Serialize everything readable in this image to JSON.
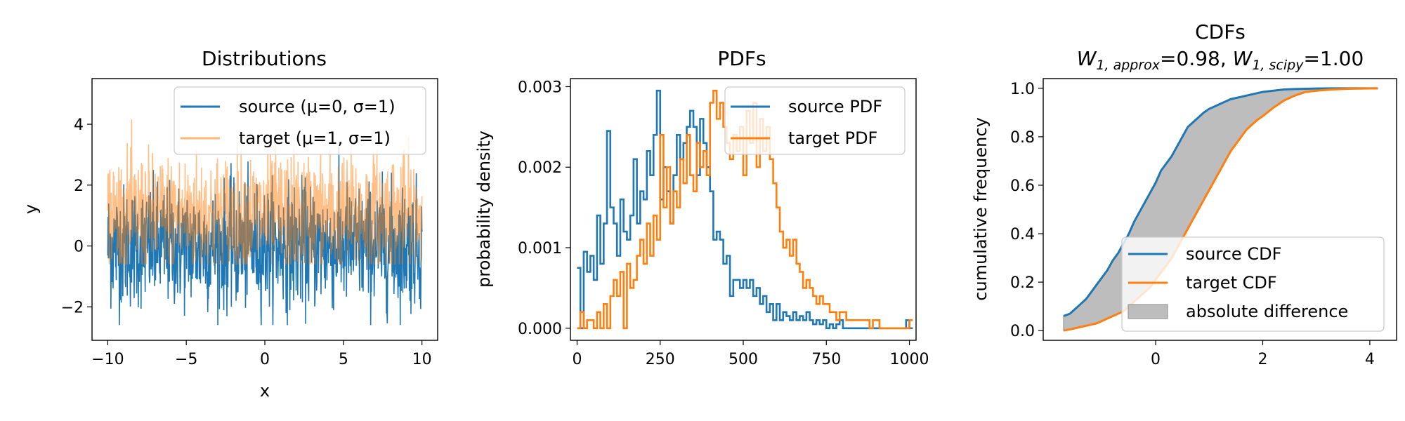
{
  "chart_data": [
    {
      "type": "line",
      "title": "Distributions",
      "xlabel": "x",
      "ylabel": "y",
      "xlim": [
        -11,
        11
      ],
      "ylim": [
        -3.1,
        5.5
      ],
      "xticks": [
        -10,
        -5,
        0,
        5,
        10
      ],
      "xtick_labels": [
        "−10",
        "−5",
        "0",
        "5",
        "10"
      ],
      "yticks": [
        -2,
        0,
        2,
        4
      ],
      "ytick_labels": [
        "−2",
        "0",
        "2",
        "4"
      ],
      "legend_position": "top-right",
      "grid": false,
      "series": [
        {
          "name": "source (μ=0, σ=1)",
          "color": "#1f77b4",
          "mean": 0,
          "std": 1,
          "n_points": 1000,
          "x_range": [
            -10,
            10
          ],
          "y_min": -2.6,
          "y_max": 4.2
        },
        {
          "name": "target (μ=1, σ=1)",
          "color": "#ff7f0e",
          "opacity": 0.5,
          "mean": 1,
          "std": 1,
          "n_points": 1000,
          "x_range": [
            -10,
            10
          ],
          "y_min": -0.6,
          "y_max": 5.1
        }
      ]
    },
    {
      "type": "line",
      "title": "PDFs",
      "xlabel": "",
      "ylabel": "probability density",
      "xlim": [
        -20,
        1020
      ],
      "ylim": [
        -0.00015,
        0.0031
      ],
      "xticks": [
        0,
        250,
        500,
        750,
        1000
      ],
      "xtick_labels": [
        "0",
        "250",
        "500",
        "750",
        "1000"
      ],
      "yticks": [
        0,
        0.001,
        0.002,
        0.003
      ],
      "ytick_labels": [
        "0.000",
        "0.001",
        "0.002",
        "0.003"
      ],
      "legend_position": "top-right",
      "grid": false,
      "series": [
        {
          "name": "source PDF",
          "color": "#1f77b4",
          "x": [
            0,
            10,
            20,
            30,
            40,
            50,
            60,
            70,
            80,
            90,
            100,
            110,
            120,
            130,
            140,
            150,
            160,
            170,
            180,
            190,
            200,
            210,
            220,
            230,
            240,
            250,
            260,
            270,
            280,
            290,
            300,
            310,
            320,
            330,
            340,
            350,
            360,
            370,
            380,
            390,
            400,
            410,
            420,
            430,
            440,
            450,
            460,
            470,
            480,
            490,
            500,
            510,
            520,
            530,
            540,
            550,
            560,
            570,
            580,
            590,
            600,
            610,
            620,
            630,
            640,
            650,
            660,
            670,
            680,
            690,
            700,
            710,
            720,
            730,
            740,
            750,
            760,
            770,
            780,
            790,
            800,
            810,
            820,
            830,
            840,
            850,
            860,
            870,
            880,
            890,
            900,
            910,
            920,
            930,
            940,
            950,
            960,
            970,
            980,
            990,
            1000
          ],
          "y": [
            0.00075,
            0.0,
            0.00095,
            0.0007,
            0.0009,
            0.0006,
            0.0014,
            0.0008,
            0.0013,
            0.00245,
            0.0015,
            0.0013,
            0.0009,
            0.0016,
            0.0012,
            0.0011,
            0.0014,
            0.0021,
            0.0013,
            0.0017,
            0.0016,
            0.0022,
            0.0019,
            0.0024,
            0.00295,
            0.0016,
            0.002,
            0.0017,
            0.0013,
            0.0019,
            0.0024,
            0.0021,
            0.0023,
            0.0025,
            0.0027,
            0.0025,
            0.0019,
            0.0026,
            0.0023,
            0.002,
            0.0017,
            0.0011,
            0.0012,
            0.0011,
            0.0008,
            0.0009,
            0.0004,
            0.0006,
            0.0006,
            0.0005,
            0.0006,
            0.0005,
            0.0006,
            0.0004,
            0.0005,
            0.0003,
            0.0004,
            0.0002,
            0.0003,
            0.0001,
            0.0003,
            0.0001,
            0.0002,
            0.00015,
            0.0001,
            0.0002,
            0.0001,
            0.00015,
            0.0001,
            0.0002,
            0.0001,
            5e-05,
            0.0001,
            5e-05,
            0.0001,
            0.0,
            5e-05,
            0.0,
            5e-05,
            0.0001,
            0.0,
            0.0,
            0.0,
            0.0,
            0.0,
            0.0,
            0.0,
            0.0,
            0.0,
            0.0,
            0.0,
            0.0,
            0.0,
            0.0,
            0.0,
            0.0,
            0.0,
            0.0,
            0.0,
            0.0001,
            0.0
          ]
        },
        {
          "name": "target PDF",
          "color": "#ff7f0e",
          "x": [
            0,
            10,
            20,
            30,
            40,
            50,
            60,
            70,
            80,
            90,
            100,
            110,
            120,
            130,
            140,
            150,
            160,
            170,
            180,
            190,
            200,
            210,
            220,
            230,
            240,
            250,
            260,
            270,
            280,
            290,
            300,
            310,
            320,
            330,
            340,
            350,
            360,
            370,
            380,
            390,
            400,
            410,
            420,
            430,
            440,
            450,
            460,
            470,
            480,
            490,
            500,
            510,
            520,
            530,
            540,
            550,
            560,
            570,
            580,
            590,
            600,
            610,
            620,
            630,
            640,
            650,
            660,
            670,
            680,
            690,
            700,
            710,
            720,
            730,
            740,
            750,
            760,
            770,
            780,
            790,
            800,
            810,
            820,
            830,
            840,
            850,
            860,
            870,
            880,
            890,
            900,
            910,
            920,
            930,
            940,
            950,
            960,
            970,
            980,
            990,
            1000
          ],
          "y": [
            0.0,
            0.0002,
            0.0,
            0.0001,
            0.0001,
            0.0,
            0.0002,
            0.0,
            0.0003,
            0.0,
            0.0004,
            0.0006,
            0.0004,
            0.0007,
            0.0,
            0.0008,
            0.0005,
            0.0006,
            0.0009,
            0.0011,
            0.0008,
            0.0013,
            0.0009,
            0.0014,
            0.0011,
            0.0024,
            0.0015,
            0.002,
            0.0013,
            0.0017,
            0.0015,
            0.0021,
            0.0018,
            0.0024,
            0.0019,
            0.0017,
            0.0023,
            0.002,
            0.0022,
            0.0019,
            0.0028,
            0.00295,
            0.0026,
            0.0028,
            0.0025,
            0.0023,
            0.0021,
            0.0024,
            0.0022,
            0.0025,
            0.0019,
            0.0027,
            0.0023,
            0.0028,
            0.002,
            0.0026,
            0.0022,
            0.0025,
            0.0021,
            0.0018,
            0.0015,
            0.0012,
            0.001,
            0.0011,
            0.0009,
            0.0011,
            0.0008,
            0.0007,
            0.0005,
            0.0006,
            0.0005,
            0.0004,
            0.0003,
            0.0004,
            0.0003,
            0.0003,
            0.0002,
            0.0002,
            0.0001,
            0.0002,
            0.0002,
            0.0001,
            0.0001,
            0.0001,
            0.0001,
            0.0001,
            0.0001,
            0.0001,
            0.0,
            0.0001,
            0.0001,
            0.0,
            0.0,
            0.0,
            0.0,
            0.0,
            0.0,
            0.0,
            0.0,
            0.0,
            0.0001
          ]
        }
      ]
    },
    {
      "type": "line",
      "title": "CDFs",
      "title_line2_parts": [
        "W",
        "1, approx",
        "=0.98, ",
        "W",
        "1, scipy",
        "=1.00"
      ],
      "xlabel": "",
      "ylabel": "cumulative frequency",
      "xlim": [
        -2.1,
        4.5
      ],
      "ylim": [
        -0.04,
        1.04
      ],
      "xticks": [
        0,
        2,
        4
      ],
      "xtick_labels": [
        "0",
        "2",
        "4"
      ],
      "yticks": [
        0.0,
        0.2,
        0.4,
        0.6,
        0.8,
        1.0
      ],
      "ytick_labels": [
        "0.0",
        "0.2",
        "0.4",
        "0.6",
        "0.8",
        "1.0"
      ],
      "legend_position": "lower-right",
      "grid": false,
      "x": [
        -1.72,
        -1.6,
        -1.5,
        -1.4,
        -1.3,
        -1.2,
        -1.1,
        -1.0,
        -0.9,
        -0.8,
        -0.7,
        -0.6,
        -0.5,
        -0.4,
        -0.3,
        -0.2,
        -0.1,
        0.0,
        0.1,
        0.2,
        0.3,
        0.4,
        0.5,
        0.6,
        0.7,
        0.8,
        0.9,
        1.0,
        1.1,
        1.2,
        1.3,
        1.4,
        1.5,
        1.6,
        1.7,
        1.8,
        1.9,
        2.0,
        2.2,
        2.4,
        2.6,
        2.8,
        3.0,
        3.3,
        3.6,
        3.9,
        4.15
      ],
      "series": [
        {
          "name": "source CDF",
          "color": "#1f77b4",
          "y": [
            0.06,
            0.07,
            0.09,
            0.11,
            0.13,
            0.16,
            0.19,
            0.22,
            0.25,
            0.29,
            0.32,
            0.36,
            0.4,
            0.45,
            0.49,
            0.53,
            0.57,
            0.61,
            0.66,
            0.69,
            0.72,
            0.76,
            0.8,
            0.84,
            0.86,
            0.88,
            0.9,
            0.915,
            0.925,
            0.935,
            0.945,
            0.955,
            0.96,
            0.965,
            0.97,
            0.975,
            0.98,
            0.985,
            0.99,
            0.995,
            0.997,
            0.998,
            0.999,
            1.0,
            1.0,
            1.0,
            1.0
          ]
        },
        {
          "name": "target CDF",
          "color": "#ff7f0e",
          "y": [
            0.0,
            0.005,
            0.01,
            0.015,
            0.02,
            0.025,
            0.03,
            0.04,
            0.05,
            0.06,
            0.07,
            0.08,
            0.1,
            0.12,
            0.14,
            0.16,
            0.18,
            0.21,
            0.24,
            0.27,
            0.3,
            0.34,
            0.38,
            0.42,
            0.46,
            0.5,
            0.54,
            0.58,
            0.62,
            0.66,
            0.7,
            0.74,
            0.77,
            0.8,
            0.83,
            0.85,
            0.87,
            0.885,
            0.92,
            0.95,
            0.97,
            0.985,
            0.99,
            0.995,
            0.998,
            0.999,
            1.0
          ]
        }
      ],
      "fill_between": {
        "name": "absolute difference",
        "color": "#bdbdbd",
        "edge_color": "#8c8c8c"
      }
    }
  ]
}
